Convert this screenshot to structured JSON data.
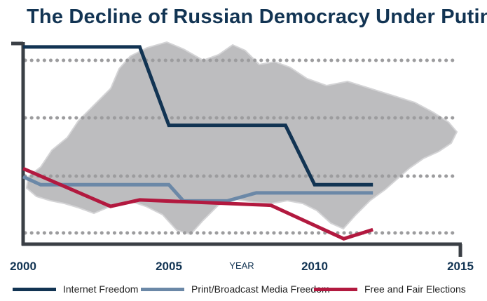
{
  "title": "The Decline of Russian Democracy Under Putin",
  "colors": {
    "title": "#123453",
    "axis": "#3a3f45",
    "map": "#bdbdbf",
    "grid": "#9c9c9e",
    "tick_text": "#123453"
  },
  "chart_data": {
    "type": "line",
    "title": "The Decline of Russian Democracy Under Putin",
    "xlabel": "YEAR",
    "ylabel": "",
    "xlim": [
      2000,
      2015
    ],
    "ylim": [
      0,
      4
    ],
    "x_ticks": [
      2000,
      2005,
      2010,
      2015
    ],
    "y_ticks": [],
    "grid": "horizontal dotted",
    "legend_position": "bottom",
    "background": "map of Russia",
    "series": [
      {
        "name": "Internet Freedom",
        "color": "#123453",
        "points": [
          [
            2000,
            3.65
          ],
          [
            2004,
            3.65
          ],
          [
            2005,
            2.2
          ],
          [
            2009,
            2.2
          ],
          [
            2010,
            1.1
          ],
          [
            2012,
            1.1
          ]
        ]
      },
      {
        "name": "Print/Broadcast Media Freedom",
        "color": "#6b88a7",
        "points": [
          [
            2000,
            1.25
          ],
          [
            2000.6,
            1.1
          ],
          [
            2005,
            1.1
          ],
          [
            2005.5,
            0.8
          ],
          [
            2007,
            0.8
          ],
          [
            2008,
            0.95
          ],
          [
            2012,
            0.95
          ]
        ]
      },
      {
        "name": "Free and Fair Elections",
        "color": "#b2193f",
        "points": [
          [
            2000,
            1.4
          ],
          [
            2003,
            0.7
          ],
          [
            2004,
            0.82
          ],
          [
            2008.5,
            0.72
          ],
          [
            2011,
            0.1
          ],
          [
            2012,
            0.27
          ]
        ]
      }
    ]
  }
}
